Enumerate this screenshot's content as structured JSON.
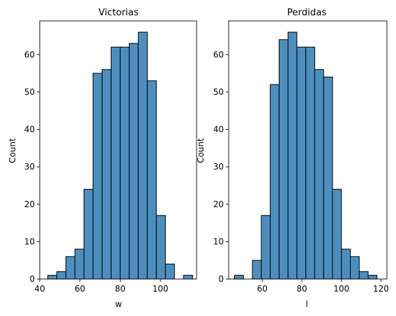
{
  "chart_data": [
    {
      "type": "histogram",
      "title": "Victorias",
      "xlabel": "w",
      "ylabel": "Count",
      "bar_color": "#4C8FBF",
      "xlim": [
        40,
        118
      ],
      "ylim": [
        0,
        69
      ],
      "xticks": [
        40,
        60,
        80,
        100
      ],
      "yticks": [
        0,
        10,
        20,
        30,
        40,
        50,
        60
      ],
      "bins": [
        {
          "x0": 44.0,
          "x1": 48.5,
          "count": 1
        },
        {
          "x0": 48.5,
          "x1": 53.0,
          "count": 2
        },
        {
          "x0": 53.0,
          "x1": 57.5,
          "count": 6
        },
        {
          "x0": 57.5,
          "x1": 62.0,
          "count": 8
        },
        {
          "x0": 62.0,
          "x1": 66.5,
          "count": 24
        },
        {
          "x0": 66.5,
          "x1": 71.0,
          "count": 55
        },
        {
          "x0": 71.0,
          "x1": 75.5,
          "count": 56
        },
        {
          "x0": 75.5,
          "x1": 80.0,
          "count": 62
        },
        {
          "x0": 80.0,
          "x1": 84.5,
          "count": 62
        },
        {
          "x0": 84.5,
          "x1": 89.0,
          "count": 63
        },
        {
          "x0": 89.0,
          "x1": 93.5,
          "count": 66
        },
        {
          "x0": 93.5,
          "x1": 98.0,
          "count": 53
        },
        {
          "x0": 98.0,
          "x1": 102.5,
          "count": 17
        },
        {
          "x0": 102.5,
          "x1": 107.0,
          "count": 4
        },
        {
          "x0": 107.0,
          "x1": 111.5,
          "count": 0
        },
        {
          "x0": 111.5,
          "x1": 116.0,
          "count": 1
        }
      ]
    },
    {
      "type": "histogram",
      "title": "Perdidas",
      "xlabel": "l",
      "ylabel": "Count",
      "bar_color": "#4C8FBF",
      "xlim": [
        43,
        123
      ],
      "ylim": [
        0,
        69
      ],
      "xticks": [
        60,
        80,
        100,
        120
      ],
      "yticks": [
        0,
        10,
        20,
        30,
        40,
        50,
        60
      ],
      "bins": [
        {
          "x0": 46.0,
          "x1": 50.5,
          "count": 1
        },
        {
          "x0": 50.5,
          "x1": 55.0,
          "count": 0
        },
        {
          "x0": 55.0,
          "x1": 59.5,
          "count": 5
        },
        {
          "x0": 59.5,
          "x1": 64.0,
          "count": 17
        },
        {
          "x0": 64.0,
          "x1": 68.5,
          "count": 52
        },
        {
          "x0": 68.5,
          "x1": 73.0,
          "count": 64
        },
        {
          "x0": 73.0,
          "x1": 77.5,
          "count": 66
        },
        {
          "x0": 77.5,
          "x1": 82.0,
          "count": 62
        },
        {
          "x0": 82.0,
          "x1": 86.5,
          "count": 62
        },
        {
          "x0": 86.5,
          "x1": 91.0,
          "count": 56
        },
        {
          "x0": 91.0,
          "x1": 95.5,
          "count": 54
        },
        {
          "x0": 95.5,
          "x1": 100.0,
          "count": 24
        },
        {
          "x0": 100.0,
          "x1": 104.5,
          "count": 8
        },
        {
          "x0": 104.5,
          "x1": 109.0,
          "count": 6
        },
        {
          "x0": 109.0,
          "x1": 113.5,
          "count": 2
        },
        {
          "x0": 113.5,
          "x1": 118.0,
          "count": 1
        }
      ]
    }
  ]
}
